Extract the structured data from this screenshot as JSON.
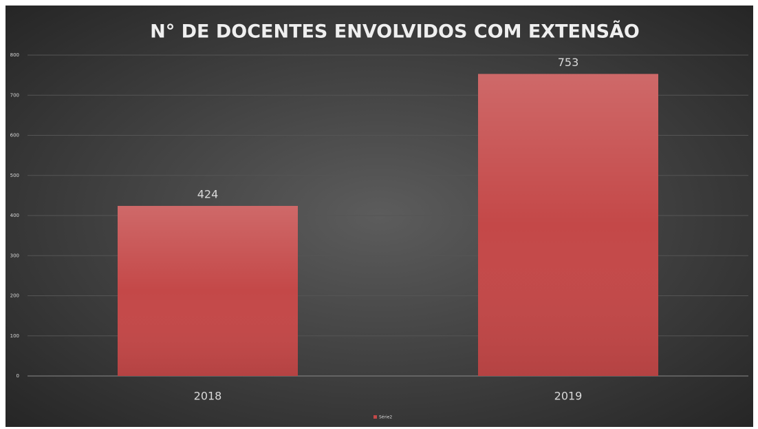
{
  "chart_data": {
    "type": "bar",
    "title": "N° DE DOCENTES ENVOLVIDOS COM EXTENSÃO",
    "categories": [
      "2018",
      "2019"
    ],
    "series": [
      {
        "name": "Série2",
        "color": "#c44848",
        "values": [
          424,
          753
        ]
      }
    ],
    "ylim": [
      0,
      800
    ],
    "yticks": [
      0,
      100,
      200,
      300,
      400,
      500,
      600,
      700,
      800
    ],
    "grid": true,
    "legend": "bottom"
  }
}
